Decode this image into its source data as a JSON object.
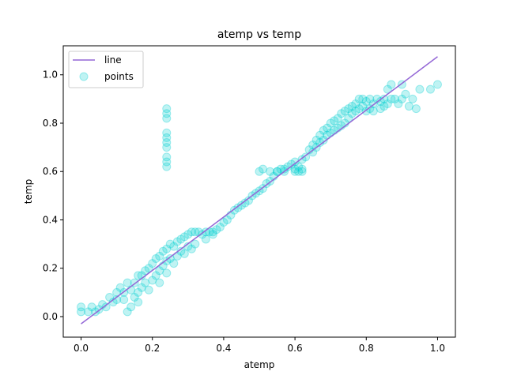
{
  "chart_data": {
    "type": "scatter",
    "title": "atemp vs temp",
    "xlabel": "atemp",
    "ylabel": "temp",
    "xlim": [
      -0.05,
      1.05
    ],
    "ylim": [
      -0.085,
      1.12
    ],
    "xticks": [
      0.0,
      0.2,
      0.4,
      0.6,
      0.8,
      1.0
    ],
    "yticks": [
      0.0,
      0.2,
      0.4,
      0.6,
      0.8,
      1.0
    ],
    "xtick_labels": [
      "0.0",
      "0.2",
      "0.4",
      "0.6",
      "0.8",
      "1.0"
    ],
    "ytick_labels": [
      "0.0",
      "0.2",
      "0.4",
      "0.6",
      "0.8",
      "1.0"
    ],
    "grid": false,
    "legend_position": "top-left",
    "series": [
      {
        "name": "line",
        "kind": "line",
        "color": "#9467d6",
        "x": [
          0.0,
          1.0
        ],
        "y": [
          -0.03,
          1.075
        ]
      },
      {
        "name": "points",
        "kind": "scatter",
        "color": "#00ced1",
        "alpha": 0.25,
        "points": [
          [
            0.0,
            0.04
          ],
          [
            0.0,
            0.02
          ],
          [
            0.02,
            0.02
          ],
          [
            0.03,
            0.04
          ],
          [
            0.04,
            0.02
          ],
          [
            0.05,
            0.03
          ],
          [
            0.06,
            0.05
          ],
          [
            0.07,
            0.04
          ],
          [
            0.08,
            0.08
          ],
          [
            0.09,
            0.06
          ],
          [
            0.1,
            0.1
          ],
          [
            0.1,
            0.07
          ],
          [
            0.11,
            0.12
          ],
          [
            0.12,
            0.1
          ],
          [
            0.12,
            0.07
          ],
          [
            0.13,
            0.14
          ],
          [
            0.13,
            0.02
          ],
          [
            0.14,
            0.04
          ],
          [
            0.14,
            0.11
          ],
          [
            0.15,
            0.08
          ],
          [
            0.15,
            0.14
          ],
          [
            0.16,
            0.17
          ],
          [
            0.16,
            0.1
          ],
          [
            0.16,
            0.06
          ],
          [
            0.17,
            0.17
          ],
          [
            0.17,
            0.12
          ],
          [
            0.18,
            0.19
          ],
          [
            0.18,
            0.14
          ],
          [
            0.19,
            0.11
          ],
          [
            0.19,
            0.2
          ],
          [
            0.2,
            0.22
          ],
          [
            0.2,
            0.15
          ],
          [
            0.21,
            0.24
          ],
          [
            0.21,
            0.17
          ],
          [
            0.22,
            0.25
          ],
          [
            0.22,
            0.19
          ],
          [
            0.22,
            0.14
          ],
          [
            0.23,
            0.27
          ],
          [
            0.23,
            0.21
          ],
          [
            0.24,
            0.28
          ],
          [
            0.24,
            0.23
          ],
          [
            0.24,
            0.18
          ],
          [
            0.25,
            0.3
          ],
          [
            0.25,
            0.24
          ],
          [
            0.26,
            0.29
          ],
          [
            0.26,
            0.22
          ],
          [
            0.27,
            0.31
          ],
          [
            0.27,
            0.25
          ],
          [
            0.28,
            0.32
          ],
          [
            0.28,
            0.27
          ],
          [
            0.29,
            0.33
          ],
          [
            0.29,
            0.26
          ],
          [
            0.3,
            0.34
          ],
          [
            0.3,
            0.29
          ],
          [
            0.31,
            0.35
          ],
          [
            0.31,
            0.28
          ],
          [
            0.32,
            0.35
          ],
          [
            0.32,
            0.3
          ],
          [
            0.33,
            0.35
          ],
          [
            0.34,
            0.34
          ],
          [
            0.35,
            0.35
          ],
          [
            0.35,
            0.32
          ],
          [
            0.36,
            0.35
          ],
          [
            0.37,
            0.35
          ],
          [
            0.37,
            0.34
          ],
          [
            0.38,
            0.36
          ],
          [
            0.39,
            0.37
          ],
          [
            0.4,
            0.39
          ],
          [
            0.41,
            0.4
          ],
          [
            0.42,
            0.42
          ],
          [
            0.43,
            0.44
          ],
          [
            0.44,
            0.45
          ],
          [
            0.45,
            0.46
          ],
          [
            0.46,
            0.47
          ],
          [
            0.47,
            0.48
          ],
          [
            0.48,
            0.5
          ],
          [
            0.49,
            0.51
          ],
          [
            0.5,
            0.52
          ],
          [
            0.51,
            0.53
          ],
          [
            0.52,
            0.55
          ],
          [
            0.53,
            0.56
          ],
          [
            0.54,
            0.58
          ],
          [
            0.55,
            0.6
          ],
          [
            0.56,
            0.61
          ],
          [
            0.57,
            0.61
          ],
          [
            0.58,
            0.62
          ],
          [
            0.59,
            0.63
          ],
          [
            0.6,
            0.64
          ],
          [
            0.6,
            0.6
          ],
          [
            0.61,
            0.62
          ],
          [
            0.62,
            0.65
          ],
          [
            0.62,
            0.6
          ],
          [
            0.63,
            0.66
          ],
          [
            0.64,
            0.69
          ],
          [
            0.65,
            0.71
          ],
          [
            0.65,
            0.68
          ],
          [
            0.66,
            0.73
          ],
          [
            0.66,
            0.7
          ],
          [
            0.67,
            0.75
          ],
          [
            0.67,
            0.72
          ],
          [
            0.68,
            0.77
          ],
          [
            0.68,
            0.73
          ],
          [
            0.69,
            0.78
          ],
          [
            0.69,
            0.75
          ],
          [
            0.7,
            0.8
          ],
          [
            0.7,
            0.76
          ],
          [
            0.71,
            0.81
          ],
          [
            0.71,
            0.77
          ],
          [
            0.72,
            0.82
          ],
          [
            0.72,
            0.78
          ],
          [
            0.73,
            0.84
          ],
          [
            0.73,
            0.79
          ],
          [
            0.74,
            0.85
          ],
          [
            0.74,
            0.8
          ],
          [
            0.75,
            0.86
          ],
          [
            0.75,
            0.82
          ],
          [
            0.76,
            0.87
          ],
          [
            0.76,
            0.84
          ],
          [
            0.77,
            0.88
          ],
          [
            0.77,
            0.85
          ],
          [
            0.78,
            0.9
          ],
          [
            0.78,
            0.86
          ],
          [
            0.79,
            0.9
          ],
          [
            0.79,
            0.87
          ],
          [
            0.8,
            0.89
          ],
          [
            0.8,
            0.85
          ],
          [
            0.81,
            0.9
          ],
          [
            0.81,
            0.86
          ],
          [
            0.82,
            0.88
          ],
          [
            0.82,
            0.85
          ],
          [
            0.83,
            0.9
          ],
          [
            0.84,
            0.89
          ],
          [
            0.84,
            0.86
          ],
          [
            0.85,
            0.9
          ],
          [
            0.85,
            0.87
          ],
          [
            0.86,
            0.94
          ],
          [
            0.86,
            0.88
          ],
          [
            0.87,
            0.96
          ],
          [
            0.87,
            0.9
          ],
          [
            0.88,
            0.9
          ],
          [
            0.89,
            0.88
          ],
          [
            0.9,
            0.96
          ],
          [
            0.9,
            0.9
          ],
          [
            0.91,
            0.92
          ],
          [
            0.92,
            0.87
          ],
          [
            0.93,
            0.9
          ],
          [
            0.94,
            0.86
          ],
          [
            0.95,
            0.94
          ],
          [
            0.98,
            0.94
          ],
          [
            1.0,
            0.96
          ],
          [
            0.24,
            0.62
          ],
          [
            0.24,
            0.64
          ],
          [
            0.24,
            0.66
          ],
          [
            0.24,
            0.7
          ],
          [
            0.24,
            0.72
          ],
          [
            0.24,
            0.74
          ],
          [
            0.24,
            0.76
          ],
          [
            0.24,
            0.82
          ],
          [
            0.24,
            0.84
          ],
          [
            0.24,
            0.86
          ],
          [
            0.5,
            0.6
          ],
          [
            0.51,
            0.61
          ],
          [
            0.53,
            0.6
          ],
          [
            0.55,
            0.6
          ],
          [
            0.57,
            0.6
          ],
          [
            0.6,
            0.61
          ],
          [
            0.61,
            0.6
          ],
          [
            0.62,
            0.61
          ]
        ]
      }
    ]
  }
}
